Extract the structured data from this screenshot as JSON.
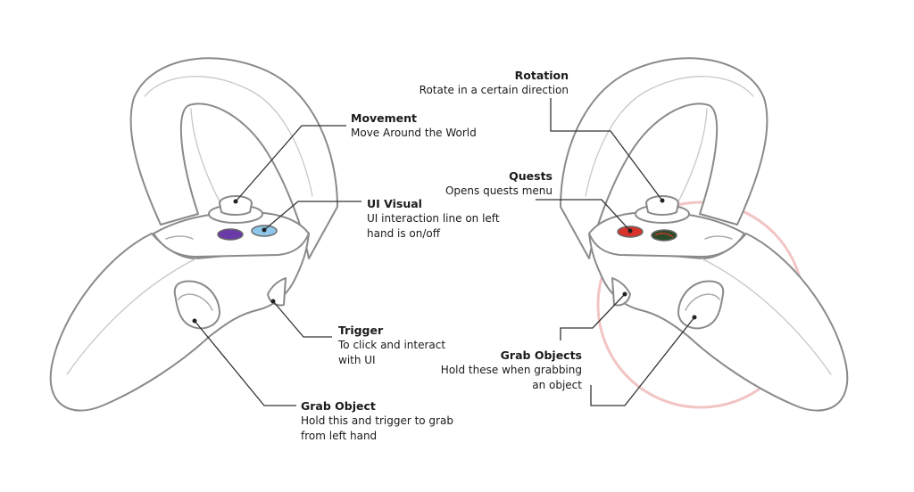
{
  "colors": {
    "outline": "#8a8a8a",
    "inner_line": "#c8c8c8",
    "leader": "#333333",
    "button_purple": "#6a3aa8",
    "button_blue": "#8ec7ea",
    "button_red": "#d8322a",
    "button_multi": "#2a4a2a",
    "highlight_circle": "#f2c4c4"
  },
  "labels": {
    "movement": {
      "title": "Movement",
      "desc": "Move Around the World"
    },
    "ui_visual": {
      "title": "UI Visual",
      "desc1": "UI interaction line on left",
      "desc2": "hand is on/off"
    },
    "trigger": {
      "title": "Trigger",
      "desc1": "To click and interact",
      "desc2": "with UI"
    },
    "grab_object": {
      "title": "Grab Object",
      "desc1": "Hold this and trigger to grab",
      "desc2": "from left hand"
    },
    "rotation": {
      "title": "Rotation",
      "desc": "Rotate in a certain direction"
    },
    "quests": {
      "title": "Quests",
      "desc": "Opens quests menu"
    },
    "grab_objects": {
      "title": "Grab Objects",
      "desc1": "Hold these when grabbing",
      "desc2": "an object"
    }
  }
}
